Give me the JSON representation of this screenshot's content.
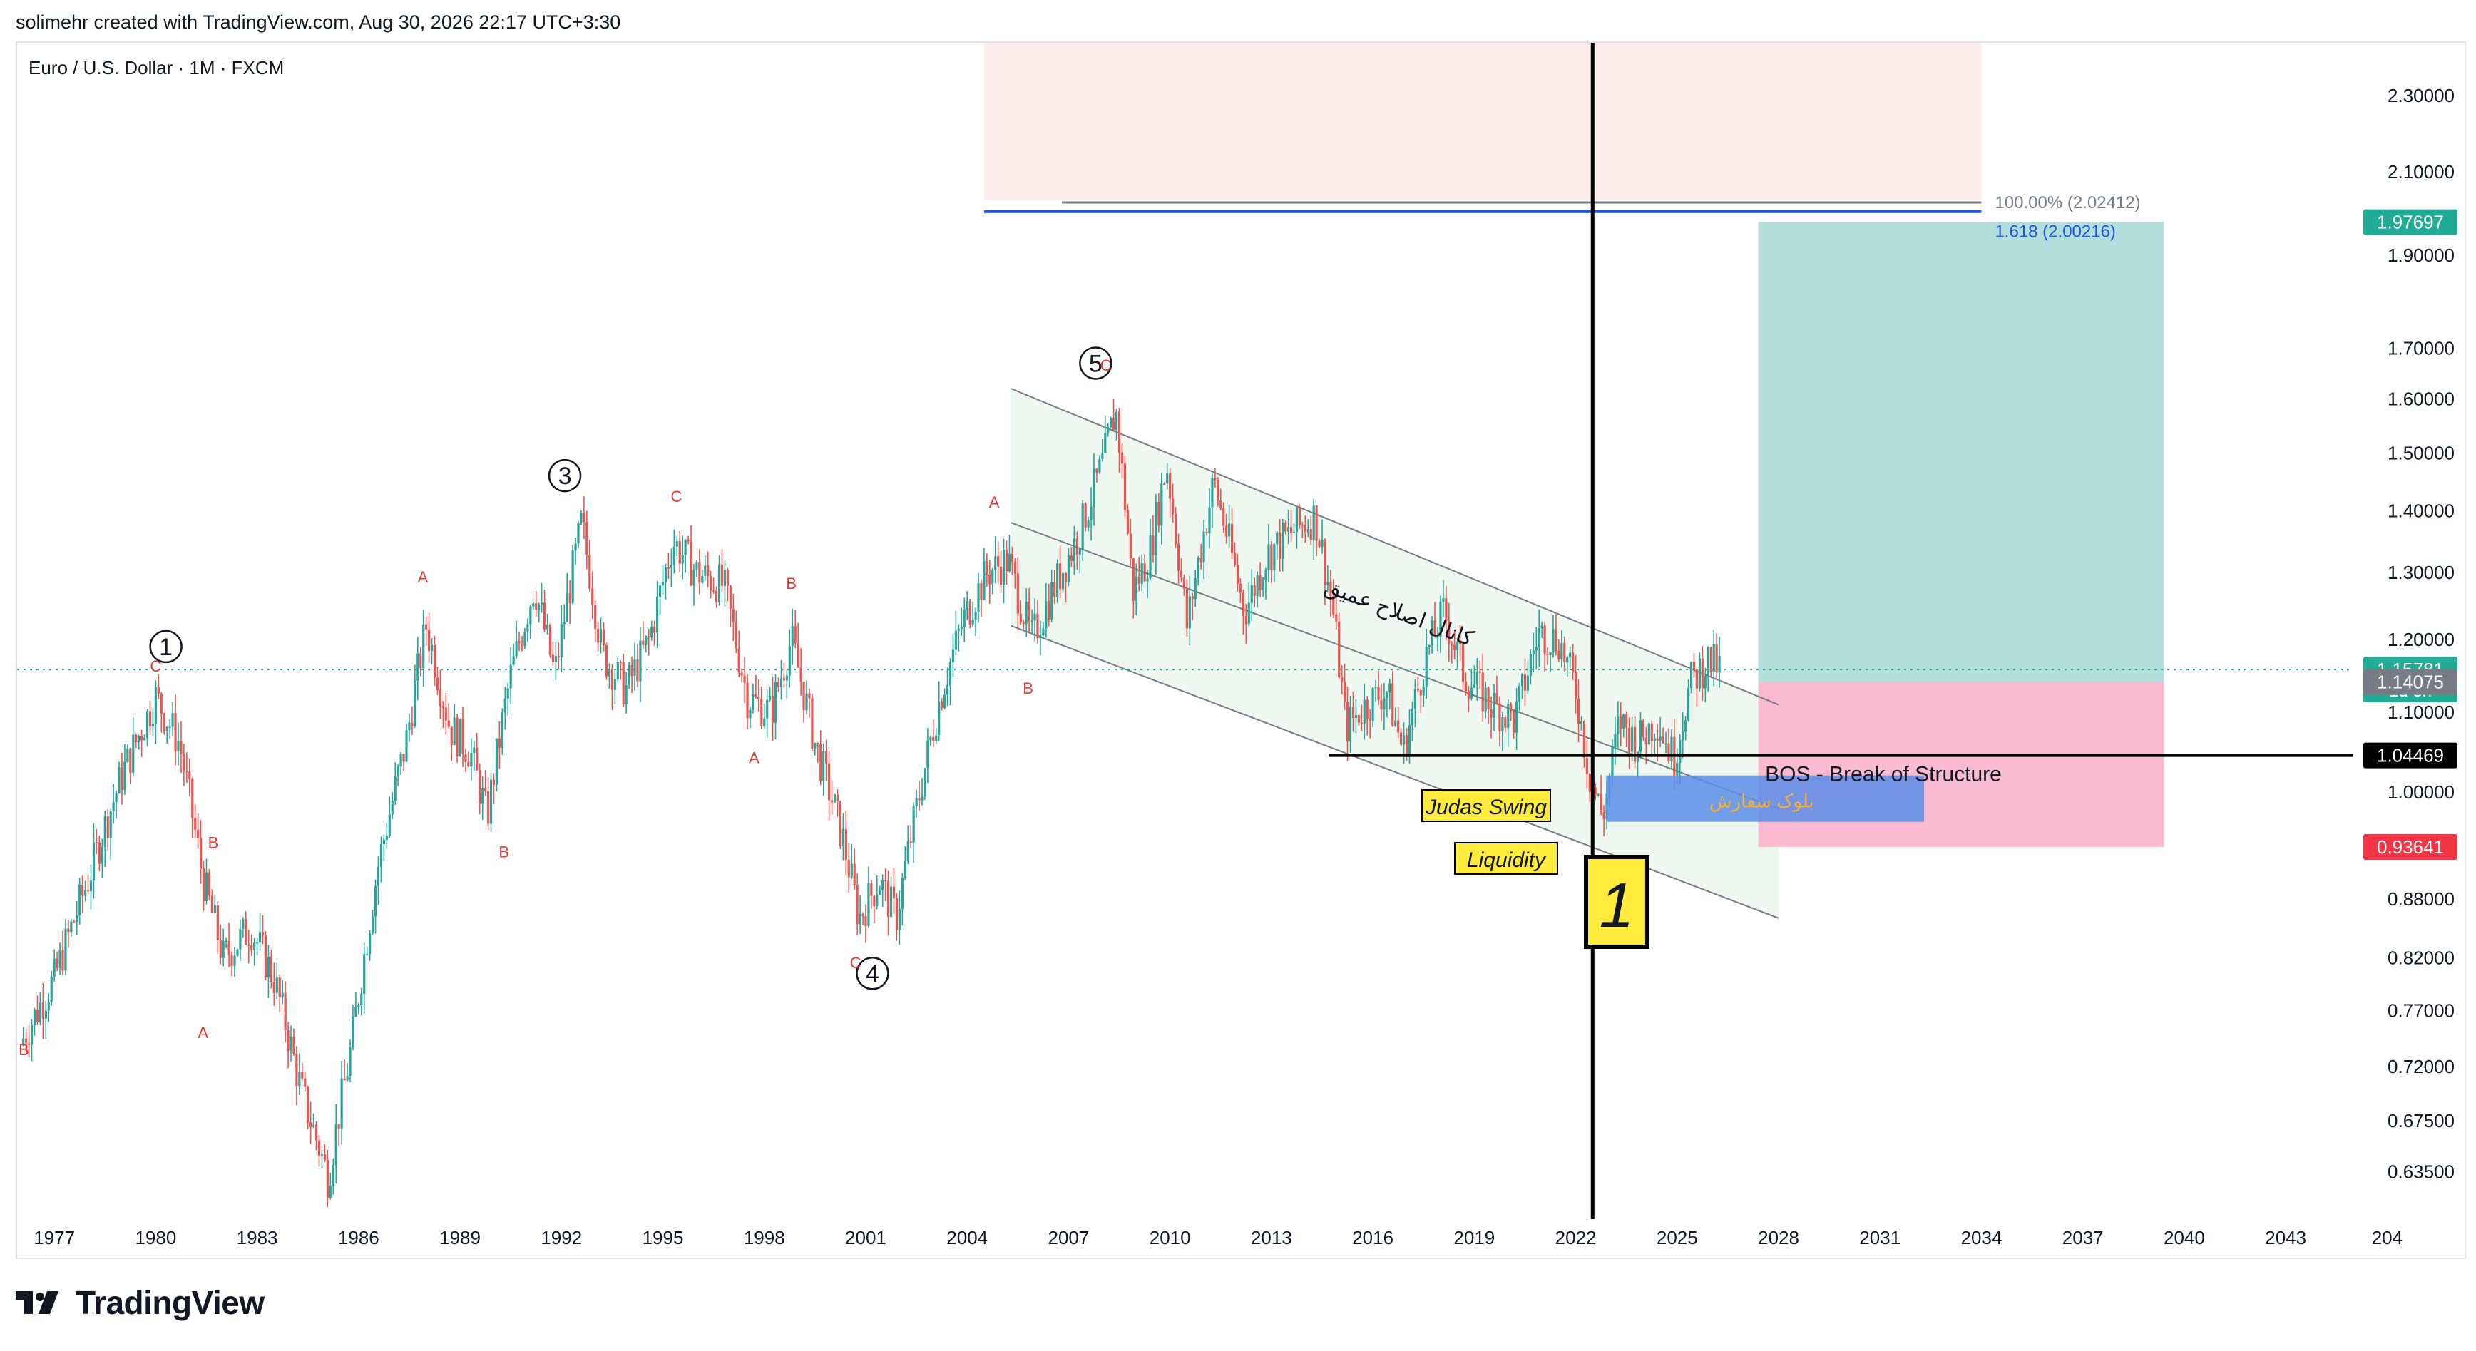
{
  "header": {
    "credit": "solimehr created with TradingView.com, Aug 30, 2026 22:17 UTC+3:30",
    "symbol": "Euro / U.S. Dollar · 1M · FXCM"
  },
  "footer": {
    "brand": "TradingView"
  },
  "colors": {
    "up": "#26a69a",
    "down": "#ef5350",
    "target_zone": "#b2dfdb",
    "stop_zone": "#f8bbd0",
    "top_zone": "#fdecec",
    "channel_fill": "#e8f5e9",
    "order_block": "#5c8de8",
    "fib_blue": "#1e53e5",
    "label_yellow": "#ffeb3b"
  },
  "chart_data": {
    "type": "candlestick",
    "timeframe": "1M",
    "y_scale": "log",
    "ylim": [
      0.6,
      2.45
    ],
    "xlim": [
      1975.9,
      2045.0
    ],
    "x_ticks": [
      "1977",
      "1980",
      "1983",
      "1986",
      "1989",
      "1992",
      "1995",
      "1998",
      "2001",
      "2004",
      "2007",
      "2010",
      "2013",
      "2016",
      "2019",
      "2022",
      "2025",
      "2028",
      "2031",
      "2034",
      "2037",
      "2040",
      "2043",
      "204"
    ],
    "y_ticks": [
      "2.30000",
      "2.10000",
      "1.90000",
      "1.70000",
      "1.60000",
      "1.50000",
      "1.40000",
      "1.30000",
      "1.20000",
      "1.10000",
      "1.00000",
      "0.88000",
      "0.82000",
      "0.77000",
      "0.72000",
      "0.67500",
      "0.63500"
    ],
    "price_path": [
      [
        1976.0,
        0.74
      ],
      [
        1977.0,
        0.8
      ],
      [
        1978.0,
        0.9
      ],
      [
        1979.0,
        1.02
      ],
      [
        1980.0,
        1.12
      ],
      [
        1980.7,
        1.06
      ],
      [
        1981.4,
        0.9
      ],
      [
        1982.0,
        0.82
      ],
      [
        1982.8,
        0.85
      ],
      [
        1983.5,
        0.8
      ],
      [
        1984.3,
        0.7
      ],
      [
        1985.1,
        0.63
      ],
      [
        1985.8,
        0.74
      ],
      [
        1986.6,
        0.92
      ],
      [
        1987.4,
        1.06
      ],
      [
        1988.0,
        1.22
      ],
      [
        1988.7,
        1.08
      ],
      [
        1989.3,
        1.05
      ],
      [
        1989.8,
        0.97
      ],
      [
        1990.5,
        1.15
      ],
      [
        1991.2,
        1.28
      ],
      [
        1991.8,
        1.15
      ],
      [
        1992.6,
        1.38
      ],
      [
        1993.2,
        1.18
      ],
      [
        1993.9,
        1.13
      ],
      [
        1994.6,
        1.2
      ],
      [
        1995.3,
        1.35
      ],
      [
        1996.0,
        1.3
      ],
      [
        1996.8,
        1.28
      ],
      [
        1997.5,
        1.12
      ],
      [
        1998.2,
        1.1
      ],
      [
        1998.8,
        1.2
      ],
      [
        1999.5,
        1.06
      ],
      [
        2000.3,
        0.95
      ],
      [
        2000.8,
        0.86
      ],
      [
        2001.4,
        0.9
      ],
      [
        2001.9,
        0.86
      ],
      [
        2002.5,
        0.98
      ],
      [
        2003.2,
        1.12
      ],
      [
        2003.9,
        1.23
      ],
      [
        2004.6,
        1.3
      ],
      [
        2005.2,
        1.32
      ],
      [
        2005.9,
        1.2
      ],
      [
        2006.6,
        1.28
      ],
      [
        2007.3,
        1.36
      ],
      [
        2008.0,
        1.48
      ],
      [
        2008.4,
        1.58
      ],
      [
        2008.9,
        1.27
      ],
      [
        2009.4,
        1.33
      ],
      [
        2009.9,
        1.48
      ],
      [
        2010.5,
        1.22
      ],
      [
        2011.3,
        1.45
      ],
      [
        2012.2,
        1.24
      ],
      [
        2012.9,
        1.33
      ],
      [
        2013.7,
        1.37
      ],
      [
        2014.3,
        1.39
      ],
      [
        2014.8,
        1.25
      ],
      [
        2015.2,
        1.08
      ],
      [
        2015.8,
        1.11
      ],
      [
        2016.4,
        1.13
      ],
      [
        2016.9,
        1.05
      ],
      [
        2017.6,
        1.18
      ],
      [
        2018.1,
        1.24
      ],
      [
        2018.7,
        1.15
      ],
      [
        2019.5,
        1.11
      ],
      [
        2020.2,
        1.09
      ],
      [
        2020.9,
        1.21
      ],
      [
        2021.5,
        1.2
      ],
      [
        2022.0,
        1.13
      ],
      [
        2022.4,
        1.02
      ],
      [
        2022.8,
        0.97
      ],
      [
        2023.3,
        1.09
      ],
      [
        2023.8,
        1.06
      ],
      [
        2024.4,
        1.09
      ],
      [
        2024.9,
        1.04
      ],
      [
        2025.4,
        1.14
      ],
      [
        2025.9,
        1.17
      ],
      [
        2026.3,
        1.158
      ]
    ],
    "price_scale_labels": [
      {
        "value": "1.97697",
        "price": 1.97697,
        "bg": "#22ab94",
        "color": "#ffffff"
      },
      {
        "value": "1.15781",
        "sub": "1d 3h",
        "price": 1.15781,
        "bg": "#22ab94",
        "color": "#ffffff"
      },
      {
        "value": "1.14075",
        "price": 1.14075,
        "bg": "#787b86",
        "color": "#ffffff"
      },
      {
        "value": "1.04469",
        "price": 1.04469,
        "bg": "#000000",
        "color": "#ffffff"
      },
      {
        "value": "0.93641",
        "price": 0.93641,
        "bg": "#f23645",
        "color": "#ffffff"
      }
    ],
    "elliott_waves": [
      {
        "label": "1",
        "x": 1980.3,
        "y": 1.19
      },
      {
        "label": "3",
        "x": 1992.1,
        "y": 1.46
      },
      {
        "label": "4",
        "x": 2001.2,
        "y": 0.805
      },
      {
        "label": "5",
        "x": 2007.8,
        "y": 1.67
      }
    ],
    "abc_labels": [
      {
        "label": "C",
        "x": 1980.0,
        "y": 1.155
      },
      {
        "label": "B",
        "x": 1981.7,
        "y": 0.935
      },
      {
        "label": "A",
        "x": 1981.4,
        "y": 0.745
      },
      {
        "label": "B",
        "x": 1976.1,
        "y": 0.73
      },
      {
        "label": "A",
        "x": 1987.9,
        "y": 1.285
      },
      {
        "label": "B",
        "x": 1990.3,
        "y": 0.925
      },
      {
        "label": "C",
        "x": 1995.4,
        "y": 1.415
      },
      {
        "label": "B",
        "x": 1998.8,
        "y": 1.275
      },
      {
        "label": "A",
        "x": 1997.7,
        "y": 1.035
      },
      {
        "label": "C",
        "x": 2000.7,
        "y": 0.81
      },
      {
        "label": "A",
        "x": 2004.8,
        "y": 1.405
      },
      {
        "label": "B",
        "x": 2005.8,
        "y": 1.125
      },
      {
        "label": "C",
        "x": 2008.1,
        "y": 1.655
      }
    ],
    "fib_levels": [
      {
        "label": "100.00% (2.02412)",
        "price": 2.02412,
        "color": "#787b86"
      },
      {
        "label": "1.618 (2.00216)",
        "price": 2.00216,
        "color": "#1e53e5"
      }
    ],
    "zones": {
      "top": {
        "x0": 2004.5,
        "x1": 2034.0,
        "p0": 2.45,
        "p1": 2.03
      },
      "target": {
        "x0": 2027.4,
        "x1": 2039.4,
        "p0": 1.97697,
        "p1": 1.14075
      },
      "stop": {
        "x0": 2027.4,
        "x1": 2039.4,
        "p0": 1.14075,
        "p1": 0.93641
      },
      "order_block": {
        "x0": 2022.9,
        "x1": 2032.3,
        "p0": 1.02,
        "p1": 0.965
      }
    },
    "channel": {
      "upper": [
        [
          2005.3,
          1.62
        ],
        [
          2028.0,
          1.11
        ]
      ],
      "mid": [
        [
          2005.3,
          1.38
        ],
        [
          2028.0,
          0.98
        ]
      ],
      "lower": [
        [
          2005.3,
          1.22
        ],
        [
          2028.0,
          0.86
        ]
      ]
    },
    "bos_line": {
      "price": 1.04469,
      "x0": 2014.7
    },
    "vertical_line_x": 2022.5,
    "horizontal_dotted_price": 1.15781,
    "annotations": {
      "bos": "BOS - Break of Structure",
      "judas": "Judas Swing",
      "liquidity": "Liquidity",
      "box_number": "1",
      "channel_label": "کانال اصلاح عمیق",
      "order_block_label": "بلوک سفارش"
    }
  }
}
